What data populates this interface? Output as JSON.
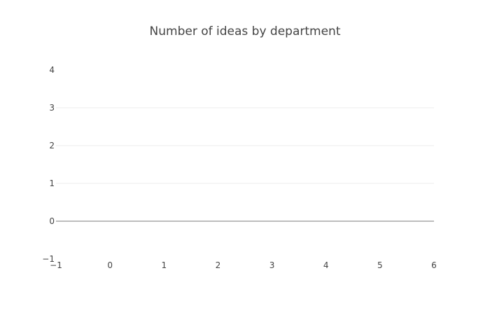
{
  "chart_data": {
    "type": "line",
    "title": "Number of ideas by department",
    "xlabel": "",
    "ylabel": "",
    "xlim": [
      -1,
      6
    ],
    "ylim": [
      -1,
      4
    ],
    "x_ticks": [
      -1,
      0,
      1,
      2,
      3,
      4,
      5,
      6
    ],
    "y_ticks": [
      -1,
      0,
      1,
      2,
      3,
      4
    ],
    "x_tick_labels": [
      "−1",
      "0",
      "1",
      "2",
      "3",
      "4",
      "5",
      "6"
    ],
    "y_tick_labels": [
      "−1",
      "0",
      "1",
      "2",
      "3",
      "4"
    ],
    "grid": true,
    "series": [],
    "colors": {
      "text": "#444444",
      "grid": "#eeeeee",
      "zeroline": "#444444",
      "background": "#ffffff"
    }
  }
}
